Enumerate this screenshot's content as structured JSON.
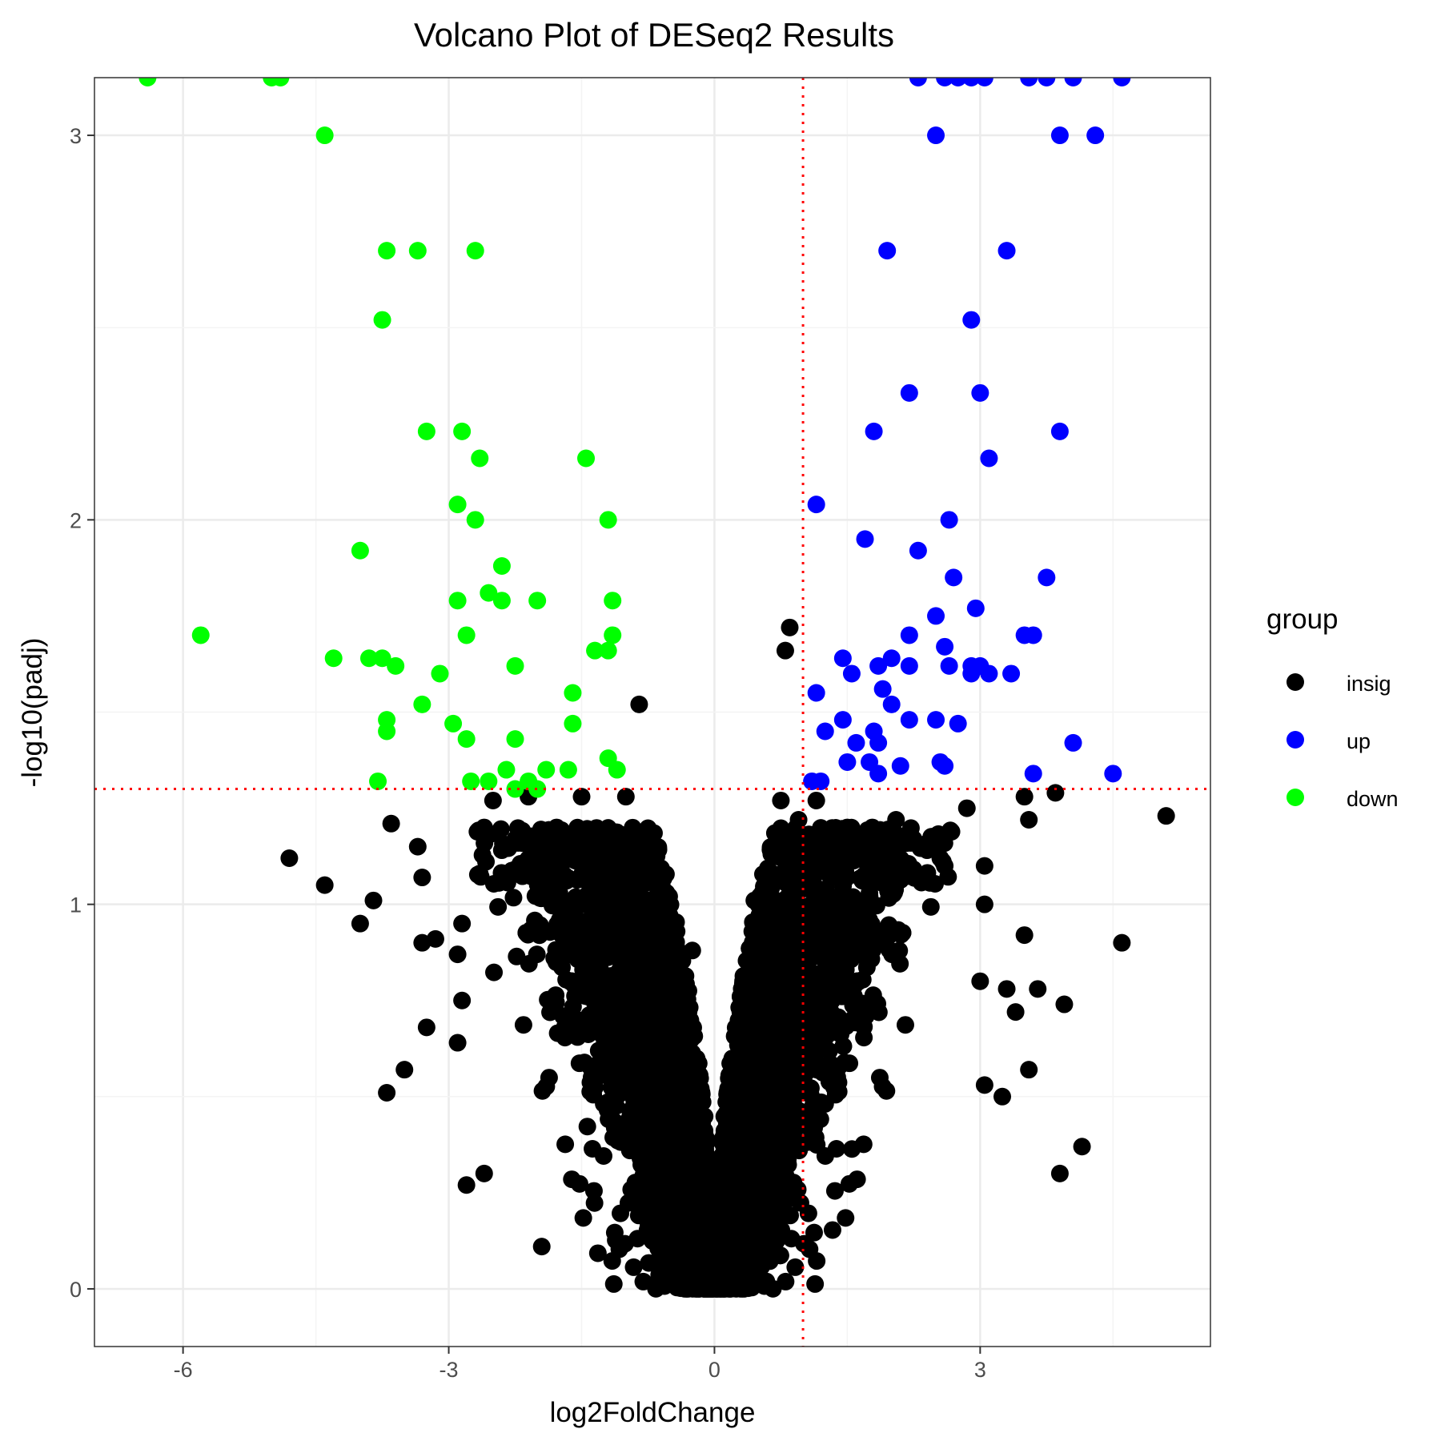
{
  "colors": {
    "insig": "#000000",
    "up": "#0000ff",
    "down": "#00ff00",
    "threshold": "#ff0000",
    "grid_major": "#ebebeb",
    "grid_minor": "#f4f4f4",
    "panel_border": "#333333",
    "tick_text": "#4d4d4d"
  },
  "chart_data": {
    "type": "scatter",
    "title": "Volcano Plot of DESeq2 Results",
    "xlabel": "log2FoldChange",
    "ylabel": "-log10(padj)",
    "xlim": [
      -7,
      5.6
    ],
    "ylim": [
      -0.15,
      3.15
    ],
    "x_ticks": [
      -6,
      -3,
      0,
      3
    ],
    "x_tick_labels": [
      "-6",
      "-3",
      "0",
      "3"
    ],
    "y_ticks": [
      0,
      1,
      2,
      3
    ],
    "y_tick_labels": [
      "0",
      "1",
      "2",
      "3"
    ],
    "grid": true,
    "thresholds": {
      "x": 1,
      "y": 1.3
    },
    "legend": {
      "title": "group",
      "position": "right",
      "entries": [
        "insig",
        "up",
        "down"
      ]
    },
    "series": [
      {
        "name": "down",
        "color": "#00ff00",
        "points": [
          [
            -6.4,
            3.15
          ],
          [
            -5.0,
            3.15
          ],
          [
            -4.9,
            3.15
          ],
          [
            -4.4,
            3.0
          ],
          [
            -3.7,
            2.7
          ],
          [
            -3.35,
            2.7
          ],
          [
            -2.7,
            2.7
          ],
          [
            -3.75,
            2.52
          ],
          [
            -3.25,
            2.23
          ],
          [
            -2.85,
            2.23
          ],
          [
            -2.65,
            2.16
          ],
          [
            -1.45,
            2.16
          ],
          [
            -2.9,
            2.04
          ],
          [
            -2.7,
            2.0
          ],
          [
            -1.2,
            2.0
          ],
          [
            -4.0,
            1.92
          ],
          [
            -2.4,
            1.88
          ],
          [
            -2.55,
            1.81
          ],
          [
            -2.4,
            1.79
          ],
          [
            -2.9,
            1.79
          ],
          [
            -2.0,
            1.79
          ],
          [
            -1.15,
            1.79
          ],
          [
            -5.8,
            1.7
          ],
          [
            -2.8,
            1.7
          ],
          [
            -1.15,
            1.7
          ],
          [
            -1.35,
            1.66
          ],
          [
            -1.2,
            1.66
          ],
          [
            -4.3,
            1.64
          ],
          [
            -3.9,
            1.64
          ],
          [
            -3.75,
            1.64
          ],
          [
            -3.6,
            1.62
          ],
          [
            -2.25,
            1.62
          ],
          [
            -3.1,
            1.6
          ],
          [
            -1.6,
            1.55
          ],
          [
            -3.3,
            1.52
          ],
          [
            -3.7,
            1.48
          ],
          [
            -2.95,
            1.47
          ],
          [
            -1.6,
            1.47
          ],
          [
            -3.7,
            1.45
          ],
          [
            -2.8,
            1.43
          ],
          [
            -2.25,
            1.43
          ],
          [
            -1.2,
            1.38
          ],
          [
            -2.35,
            1.35
          ],
          [
            -1.65,
            1.35
          ],
          [
            -1.1,
            1.35
          ],
          [
            -3.8,
            1.32
          ],
          [
            -2.75,
            1.32
          ],
          [
            -2.55,
            1.32
          ],
          [
            -2.1,
            1.32
          ],
          [
            -1.9,
            1.35
          ],
          [
            -2.25,
            1.3
          ],
          [
            -2.0,
            1.3
          ]
        ]
      },
      {
        "name": "up",
        "color": "#0000ff",
        "points": [
          [
            2.3,
            3.15
          ],
          [
            2.6,
            3.15
          ],
          [
            2.75,
            3.15
          ],
          [
            2.9,
            3.15
          ],
          [
            3.05,
            3.15
          ],
          [
            3.55,
            3.15
          ],
          [
            3.75,
            3.15
          ],
          [
            4.05,
            3.15
          ],
          [
            4.6,
            3.15
          ],
          [
            2.5,
            3.0
          ],
          [
            3.9,
            3.0
          ],
          [
            4.3,
            3.0
          ],
          [
            1.95,
            2.7
          ],
          [
            3.3,
            2.7
          ],
          [
            2.9,
            2.52
          ],
          [
            2.2,
            2.33
          ],
          [
            3.0,
            2.33
          ],
          [
            1.8,
            2.23
          ],
          [
            3.9,
            2.23
          ],
          [
            3.1,
            2.16
          ],
          [
            1.15,
            2.04
          ],
          [
            2.65,
            2.0
          ],
          [
            1.7,
            1.95
          ],
          [
            2.3,
            1.92
          ],
          [
            2.7,
            1.85
          ],
          [
            3.75,
            1.85
          ],
          [
            2.95,
            1.77
          ],
          [
            2.5,
            1.75
          ],
          [
            2.2,
            1.7
          ],
          [
            3.5,
            1.7
          ],
          [
            3.6,
            1.7
          ],
          [
            2.6,
            1.67
          ],
          [
            1.45,
            1.64
          ],
          [
            2.0,
            1.64
          ],
          [
            1.85,
            1.62
          ],
          [
            2.2,
            1.62
          ],
          [
            2.65,
            1.62
          ],
          [
            2.9,
            1.62
          ],
          [
            3.0,
            1.62
          ],
          [
            1.55,
            1.6
          ],
          [
            2.9,
            1.6
          ],
          [
            3.1,
            1.6
          ],
          [
            3.35,
            1.6
          ],
          [
            1.15,
            1.55
          ],
          [
            1.9,
            1.56
          ],
          [
            2.0,
            1.52
          ],
          [
            1.45,
            1.48
          ],
          [
            2.2,
            1.48
          ],
          [
            2.5,
            1.48
          ],
          [
            2.75,
            1.47
          ],
          [
            1.25,
            1.45
          ],
          [
            1.8,
            1.45
          ],
          [
            1.6,
            1.42
          ],
          [
            1.85,
            1.42
          ],
          [
            4.05,
            1.42
          ],
          [
            1.5,
            1.37
          ],
          [
            1.75,
            1.37
          ],
          [
            2.1,
            1.36
          ],
          [
            2.55,
            1.37
          ],
          [
            2.6,
            1.36
          ],
          [
            1.85,
            1.34
          ],
          [
            3.6,
            1.34
          ],
          [
            4.5,
            1.34
          ],
          [
            1.1,
            1.32
          ],
          [
            1.2,
            1.32
          ]
        ]
      },
      {
        "name": "insig",
        "color": "#000000",
        "points": [
          [
            -0.85,
            1.52
          ],
          [
            0.85,
            1.72
          ],
          [
            0.8,
            1.66
          ],
          [
            5.1,
            1.23
          ],
          [
            4.6,
            0.9
          ],
          [
            3.9,
            0.3
          ],
          [
            4.15,
            0.37
          ],
          [
            3.95,
            0.74
          ],
          [
            3.65,
            0.78
          ],
          [
            3.5,
            0.92
          ],
          [
            3.55,
            1.22
          ],
          [
            3.5,
            1.28
          ],
          [
            3.85,
            1.29
          ],
          [
            2.85,
            1.25
          ],
          [
            3.05,
            1.1
          ],
          [
            3.05,
            1.0
          ],
          [
            3.0,
            0.8
          ],
          [
            3.3,
            0.78
          ],
          [
            3.4,
            0.72
          ],
          [
            3.55,
            0.57
          ],
          [
            3.25,
            0.5
          ],
          [
            3.05,
            0.53
          ],
          [
            -4.8,
            1.12
          ],
          [
            -4.4,
            1.05
          ],
          [
            -4.0,
            0.95
          ],
          [
            -3.85,
            1.01
          ],
          [
            -3.65,
            1.21
          ],
          [
            -3.35,
            1.15
          ],
          [
            -3.3,
            1.07
          ],
          [
            -3.3,
            0.9
          ],
          [
            -3.15,
            0.91
          ],
          [
            -3.25,
            0.68
          ],
          [
            -3.5,
            0.57
          ],
          [
            -3.7,
            0.51
          ],
          [
            -2.8,
            0.27
          ],
          [
            -2.6,
            0.3
          ],
          [
            -1.95,
            0.11
          ],
          [
            -2.9,
            0.64
          ],
          [
            -2.9,
            0.87
          ],
          [
            -2.85,
            0.95
          ],
          [
            -2.85,
            0.75
          ],
          [
            -2.65,
            1.08
          ],
          [
            -2.6,
            1.2
          ],
          [
            -2.5,
            1.27
          ],
          [
            -2.1,
            1.28
          ],
          [
            -1.5,
            1.28
          ],
          [
            -1.0,
            1.28
          ],
          [
            0.75,
            1.27
          ],
          [
            1.15,
            1.27
          ],
          [
            0.95,
            1.22
          ],
          [
            0.9,
            1.18
          ],
          [
            1.5,
            1.2
          ],
          [
            1.8,
            1.18
          ],
          [
            2.05,
            1.22
          ],
          [
            2.55,
            1.12
          ],
          [
            2.6,
            1.1
          ],
          [
            0.45,
            1.01
          ],
          [
            -0.25,
            0.88
          ],
          [
            0.1,
            0.1
          ]
        ],
        "dense_clusters": [
          {
            "x_range": [
              -2.8,
              0.0
            ],
            "y_range": [
              0.0,
              1.25
            ],
            "envelope": "left funnel"
          },
          {
            "x_range": [
              0.0,
              2.8
            ],
            "y_range": [
              0.0,
              1.25
            ],
            "envelope": "right funnel"
          }
        ]
      }
    ]
  }
}
